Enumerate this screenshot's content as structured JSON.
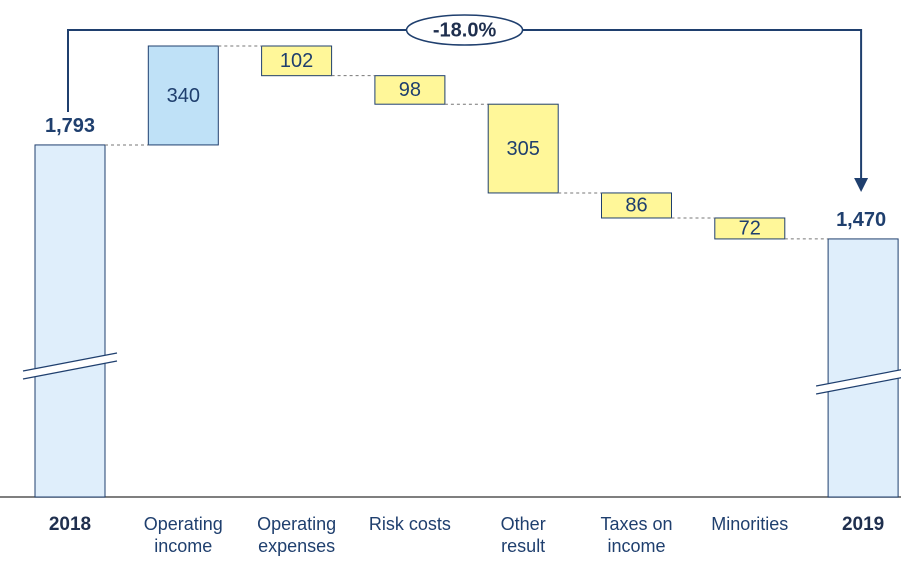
{
  "chart_data": {
    "type": "waterfall",
    "annotation": "-18.0%",
    "categories": [
      "2018",
      "Operating income",
      "Operating expenses",
      "Risk costs",
      "Other result",
      "Taxes on income",
      "Minorities",
      "2019"
    ],
    "values": [
      1793,
      340,
      -102,
      -98,
      -305,
      -86,
      -72,
      1470
    ],
    "value_labels": [
      "1,793",
      "340",
      "102",
      "98",
      "305",
      "86",
      "72",
      "1,470"
    ],
    "totals": [
      true,
      false,
      false,
      false,
      false,
      false,
      false,
      true
    ],
    "colors": {
      "total": "#dfeefb",
      "increase": "#bfe1f7",
      "decrease": "#fff799",
      "edge": "#1f3f6e"
    }
  }
}
